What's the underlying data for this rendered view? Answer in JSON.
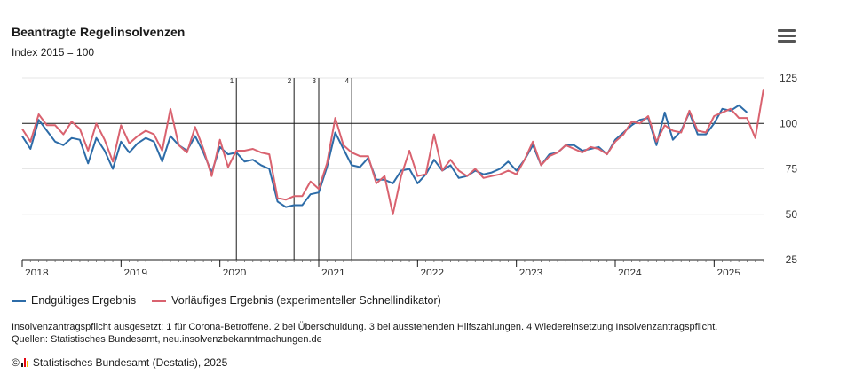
{
  "header": {
    "title": "Beantragte Regelinsolvenzen",
    "subtitle": "Index 2015 = 100"
  },
  "menu_icon": "hamburger-menu-icon",
  "legend": [
    {
      "label": "Endgültiges Ergebnis",
      "color": "#2d6ca8"
    },
    {
      "label": "Vorläufiges Ergebnis (experimenteller Schnellindikator)",
      "color": "#d9626f"
    }
  ],
  "notes": {
    "line1": "Insolvenzantragspflicht ausgesetzt: 1 für Corona-Betroffene. 2 bei Überschuldung. 3 bei ausstehenden Hilfszahlungen. 4 Wiedereinsetzung Insolvenzantragspflicht.",
    "line2": "Quellen: Statistisches Bundesamt, neu.insolvenzbekanntmachungen.de"
  },
  "footer": {
    "copyright": "©",
    "logo_icon": "destatis-logo-icon",
    "text": "Statistisches Bundesamt (Destatis), 2025"
  },
  "chart_data": {
    "type": "line",
    "title": "Beantragte Regelinsolvenzen",
    "subtitle": "Index 2015 = 100",
    "x_axis": {
      "start": "2018-01",
      "end": "2025-07",
      "tick_labels": [
        "2018",
        "2019",
        "2020",
        "2021",
        "2022",
        "2023",
        "2024",
        "2025"
      ]
    },
    "y_axis": {
      "ticks": [
        25,
        50,
        75,
        100,
        125
      ],
      "range": [
        25,
        125
      ],
      "position": "right"
    },
    "reference_line": 100,
    "grid": true,
    "legend_position": "bottom-left",
    "annotations": [
      {
        "label": "1",
        "date": "2020-03"
      },
      {
        "label": "2",
        "date": "2020-10"
      },
      {
        "label": "3",
        "date": "2021-01"
      },
      {
        "label": "4",
        "date": "2021-05"
      }
    ],
    "series": [
      {
        "name": "Endgültiges Ergebnis",
        "color": "#2d6ca8",
        "start": "2018-01",
        "values": [
          93,
          86,
          102,
          96,
          90,
          88,
          92,
          91,
          78,
          92,
          85,
          75,
          90,
          84,
          89,
          92,
          90,
          79,
          93,
          88,
          85,
          93,
          84,
          73,
          87,
          83,
          84,
          79,
          80,
          77,
          75,
          57,
          54,
          55,
          55,
          61,
          62,
          76,
          95,
          86,
          77,
          76,
          81,
          69,
          69,
          67,
          74,
          75,
          67,
          72,
          80,
          74,
          77,
          70,
          71,
          74,
          72,
          73,
          75,
          79,
          74,
          80,
          88,
          77,
          83,
          84,
          88,
          88,
          85,
          86,
          87,
          83,
          91,
          95,
          99,
          102,
          103,
          88,
          106,
          91,
          96,
          106,
          94,
          94,
          100,
          108,
          107,
          110,
          106
        ]
      },
      {
        "name": "Vorläufiges Ergebnis (experimenteller Schnellindikator)",
        "color": "#d9626f",
        "start": "2018-01",
        "values": [
          97,
          90,
          105,
          99,
          99,
          94,
          101,
          97,
          85,
          100,
          91,
          79,
          99,
          89,
          93,
          96,
          94,
          85,
          108,
          88,
          84,
          98,
          86,
          71,
          91,
          76,
          85,
          85,
          86,
          84,
          83,
          59,
          58,
          60,
          60,
          68,
          64,
          78,
          103,
          88,
          84,
          82,
          82,
          67,
          71,
          50,
          71,
          85,
          71,
          72,
          94,
          74,
          80,
          74,
          71,
          75,
          70,
          71,
          72,
          74,
          72,
          80,
          90,
          77,
          82,
          84,
          88,
          86,
          84,
          87,
          86,
          83,
          90,
          94,
          101,
          100,
          104,
          90,
          99,
          96,
          95,
          107,
          96,
          95,
          104,
          106,
          108,
          103,
          103,
          92,
          119
        ]
      }
    ]
  }
}
